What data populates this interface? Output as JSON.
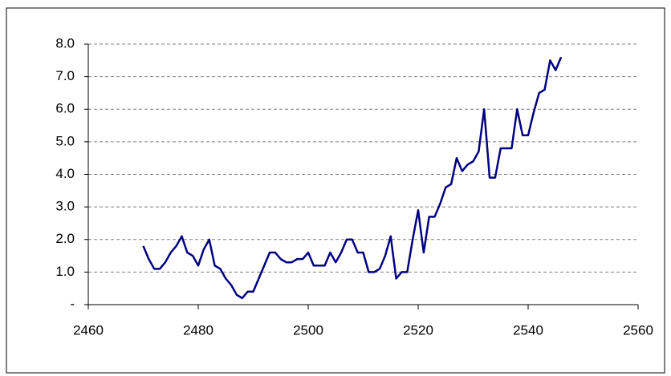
{
  "chart_data": {
    "type": "line",
    "x": [
      2470,
      2471,
      2472,
      2473,
      2474,
      2475,
      2476,
      2477,
      2478,
      2479,
      2480,
      2481,
      2482,
      2483,
      2484,
      2485,
      2486,
      2487,
      2488,
      2489,
      2490,
      2491,
      2492,
      2493,
      2494,
      2495,
      2496,
      2497,
      2498,
      2499,
      2500,
      2501,
      2502,
      2503,
      2504,
      2505,
      2506,
      2507,
      2508,
      2509,
      2510,
      2511,
      2512,
      2513,
      2514,
      2515,
      2516,
      2517,
      2518,
      2519,
      2520,
      2521,
      2522,
      2523,
      2524,
      2525,
      2526,
      2527,
      2528,
      2529,
      2530,
      2531,
      2532,
      2533,
      2534,
      2535,
      2536,
      2537,
      2538,
      2539,
      2540,
      2541,
      2542,
      2543,
      2544,
      2545,
      2546
    ],
    "series": [
      {
        "color": "#000080",
        "values": [
          1.8,
          1.4,
          1.1,
          1.1,
          1.3,
          1.6,
          1.8,
          2.1,
          1.6,
          1.5,
          1.2,
          1.7,
          2.0,
          1.2,
          1.1,
          0.8,
          0.6,
          0.3,
          0.2,
          0.4,
          0.4,
          0.8,
          1.2,
          1.6,
          1.6,
          1.4,
          1.3,
          1.3,
          1.4,
          1.4,
          1.6,
          1.2,
          1.2,
          1.2,
          1.6,
          1.3,
          1.6,
          2.0,
          2.0,
          1.6,
          1.6,
          1.0,
          1.0,
          1.1,
          1.5,
          2.1,
          0.8,
          1.0,
          1.0,
          2.0,
          2.9,
          1.6,
          2.7,
          2.7,
          3.1,
          3.6,
          3.7,
          4.5,
          4.1,
          4.3,
          4.4,
          4.7,
          6.0,
          3.9,
          3.9,
          4.8,
          4.8,
          4.8,
          6.0,
          5.2,
          5.2,
          5.9,
          6.5,
          6.6,
          7.5,
          7.2,
          7.6
        ]
      }
    ],
    "xlim": [
      2460,
      2560
    ],
    "xticks": [
      2460,
      2480,
      2500,
      2520,
      2540,
      2560
    ],
    "ylim": [
      0,
      8
    ],
    "yticks": [
      {
        "value": 0,
        "label": "-"
      },
      {
        "value": 1,
        "label": "1.0"
      },
      {
        "value": 2,
        "label": "2.0"
      },
      {
        "value": 3,
        "label": "3.0"
      },
      {
        "value": 4,
        "label": "4.0"
      },
      {
        "value": 5,
        "label": "5.0"
      },
      {
        "value": 6,
        "label": "6.0"
      },
      {
        "value": 7,
        "label": "7.0"
      },
      {
        "value": 8,
        "label": "8.0"
      }
    ],
    "grid": true
  }
}
